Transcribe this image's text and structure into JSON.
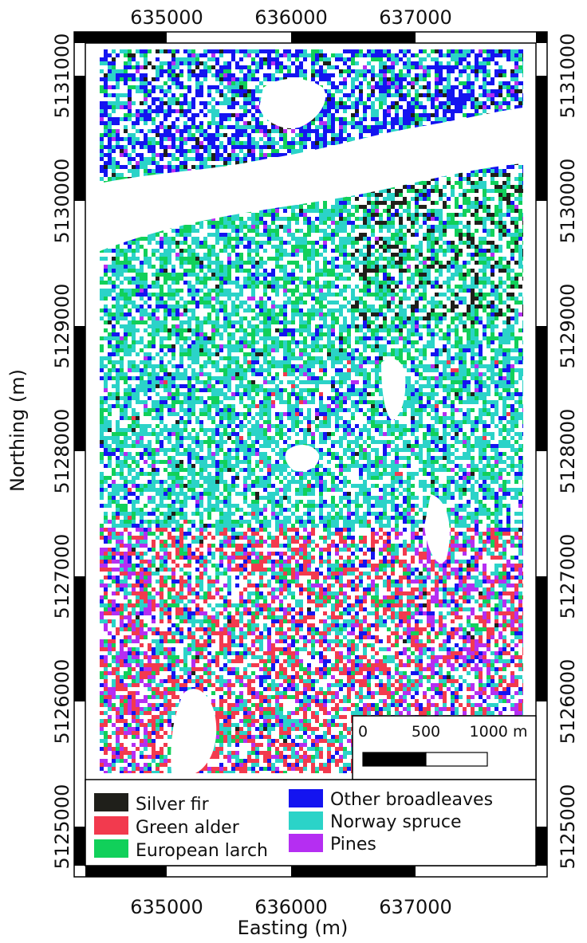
{
  "map": {
    "easting_ticks": [
      "635000",
      "636000",
      "637000"
    ],
    "northing_ticks": [
      "5131000",
      "5130000",
      "5129000",
      "5128000",
      "5127000",
      "5126000",
      "5125000"
    ],
    "xlabel": "Easting (m)",
    "ylabel": "Northing (m)"
  },
  "scalebar": {
    "labels": [
      "0",
      "500",
      "1000 m"
    ]
  },
  "legend": [
    {
      "label": "Silver fir",
      "color": "#1f1f1a"
    },
    {
      "label": "Green alder",
      "color": "#f23a4e"
    },
    {
      "label": "European larch",
      "color": "#11d05a"
    },
    {
      "label": "Other broadleaves",
      "color": "#1414f0"
    },
    {
      "label": "Norway spruce",
      "color": "#2bd3c8"
    },
    {
      "label": "Pines",
      "color": "#b52ef2"
    }
  ]
}
